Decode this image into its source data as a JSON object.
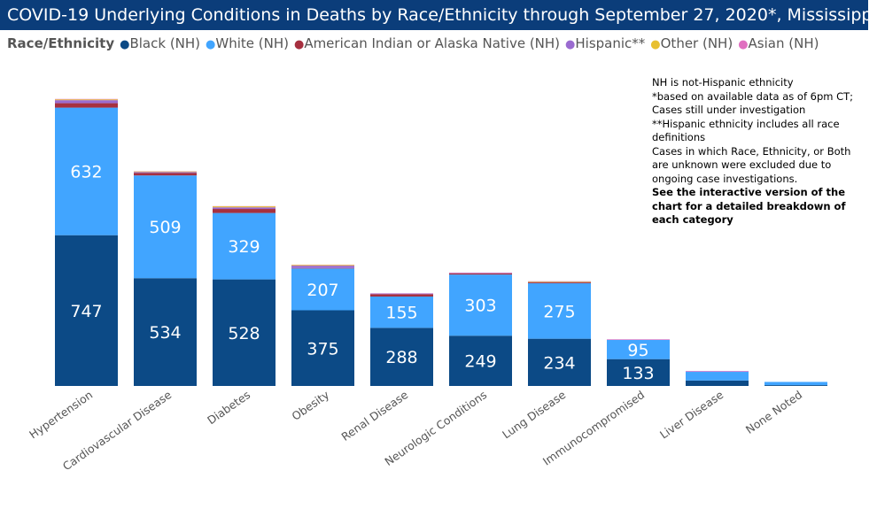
{
  "chart_data": {
    "type": "bar",
    "stacked": true,
    "title": "COVID-19 Underlying Conditions in Deaths by Race/Ethnicity through September 27, 2020*, Mississippi",
    "legend_title": "Race/Ethnicity",
    "legend_position": "top-left",
    "categories": [
      "Hypertension",
      "Cardiovascular Disease",
      "Diabetes",
      "Obesity",
      "Renal Disease",
      "Neurologic Conditions",
      "Lung Disease",
      "Immunocompromised",
      "Liver Disease",
      "None Noted"
    ],
    "series": [
      {
        "name": "Black (NH)",
        "color": "#0c4a86",
        "values": [
          747,
          534,
          528,
          375,
          288,
          249,
          234,
          133,
          27,
          4
        ],
        "labels": [
          "747",
          "534",
          "528",
          "375",
          "288",
          "249",
          "234",
          "133",
          "",
          ""
        ]
      },
      {
        "name": "White (NH)",
        "color": "#41a5ff",
        "values": [
          632,
          509,
          329,
          207,
          155,
          303,
          275,
          95,
          43,
          16
        ],
        "labels": [
          "632",
          "509",
          "329",
          "207",
          "155",
          "303",
          "275",
          "95",
          "",
          ""
        ]
      },
      {
        "name": "American Indian or Alaska Native (NH)",
        "color": "#a6303f",
        "values": [
          22,
          12,
          20,
          2,
          12,
          6,
          4,
          0,
          0,
          0
        ]
      },
      {
        "name": "Hispanic**",
        "color": "#9a6bd0",
        "values": [
          15,
          5,
          8,
          12,
          3,
          2,
          2,
          0,
          2,
          0
        ]
      },
      {
        "name": "Other (NH)",
        "color": "#e8c030",
        "values": [
          4,
          3,
          5,
          4,
          0,
          0,
          3,
          0,
          0,
          0
        ]
      },
      {
        "name": "Asian (NH)",
        "color": "#e070c0",
        "values": [
          2,
          1,
          1,
          1,
          1,
          2,
          1,
          3,
          2,
          0
        ]
      }
    ],
    "grid": false,
    "y_axis_visible": false
  },
  "notes": {
    "lines": [
      "NH is not-Hispanic ethnicity",
      "*based on available data as of 6pm CT; Cases still under investigation",
      "**Hispanic ethnicity includes all race definitions",
      "Cases in which Race, Ethnicity, or Both are unknown were excluded due to ongoing case investigations."
    ],
    "bold": "See the interactive version of the chart for a detailed breakdown of each category"
  }
}
